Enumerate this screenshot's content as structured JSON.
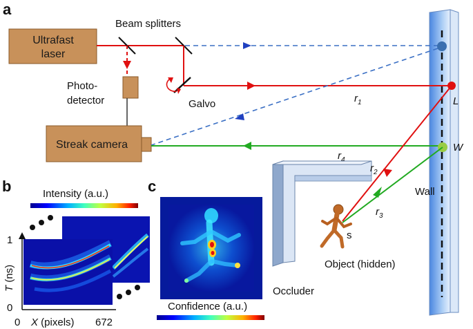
{
  "panels": {
    "a": "a",
    "b": "b",
    "c": "c"
  },
  "setup": {
    "laser_line1": "Ultrafast",
    "laser_line2": "laser",
    "beam_splitters": "Beam splitters",
    "photo_line1": "Photo-",
    "photo_line2": "detector",
    "galvo": "Galvo",
    "streak_camera": "Streak camera",
    "wall": "Wall",
    "occluder": "Occluder",
    "object": "Object (hidden)",
    "point_L": "L",
    "point_W": "W",
    "point_s": "s",
    "r": "r",
    "r1_sub": "1",
    "r2_sub": "2",
    "r3_sub": "3",
    "r4_sub": "4"
  },
  "panel_b": {
    "colorbar_label": "Intensity (a.u.)",
    "y_axis_letter": "T",
    "y_axis_unit": " (ns)",
    "y_tick_top": "1",
    "y_tick_bottom": "0",
    "x_tick_left": "0",
    "x_axis_letter": "X",
    "x_axis_unit": " (pixels)",
    "x_tick_right": "672"
  },
  "panel_c": {
    "colorbar_label": "Confidence (a.u.)"
  },
  "colors": {
    "laser_box": "#c8915a",
    "laser_red": "#e01010",
    "return_green": "#22aa22",
    "ref_blue": "#3a6fc4",
    "wall_blue": "#8ab4f0",
    "occluder": "#b8cce8"
  }
}
